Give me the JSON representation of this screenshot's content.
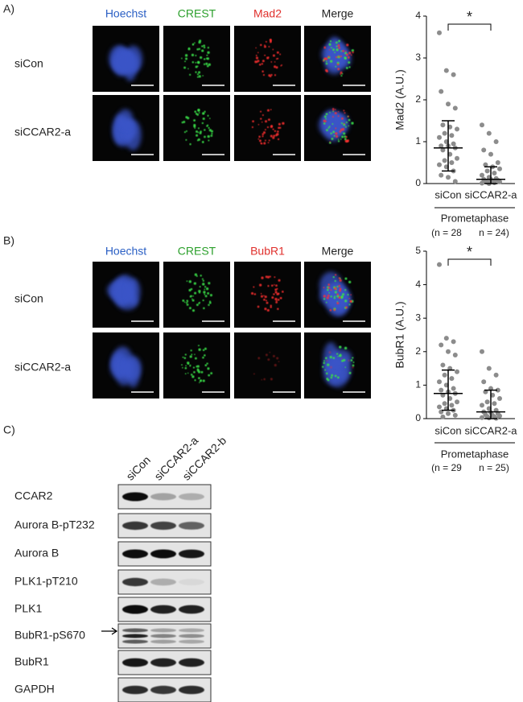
{
  "figure": {
    "panel_a": {
      "label": "A)",
      "columns": [
        "Hoechst",
        "CREST",
        "Mad2",
        "Merge"
      ],
      "rows": [
        "siCon",
        "siCCAR2-a"
      ]
    },
    "panel_b": {
      "label": "B)",
      "columns": [
        "Hoechst",
        "CREST",
        "BubR1",
        "Merge"
      ],
      "rows": [
        "siCon",
        "siCCAR2-a"
      ]
    },
    "panel_c": {
      "label": "C)",
      "lanes": [
        "siCon",
        "siCCAR2-a",
        "siCCAR2-b"
      ],
      "blots": [
        "CCAR2",
        "Aurora B-pT232",
        "Aurora B",
        "PLK1-pT210",
        "PLK1",
        "BubR1-pS670",
        "BubR1",
        "GAPDH"
      ]
    }
  },
  "chart_data": [
    {
      "type": "scatter",
      "y_label": "Mad2 (A.U.)",
      "categories": [
        "siCon",
        "siCCAR2-a"
      ],
      "color": "#8c8c8c",
      "ylim": [
        0,
        4
      ],
      "yticks": [
        0,
        1,
        2,
        3,
        4
      ],
      "significance": "*",
      "group_label": "Prometaphase",
      "n_labels": [
        "(n = 28",
        "n = 24)"
      ],
      "groups": [
        {
          "values": [
            3.6,
            2.7,
            2.6,
            2.2,
            1.9,
            1.8,
            1.4,
            1.35,
            1.3,
            1.2,
            1.15,
            1.1,
            1.0,
            0.95,
            0.9,
            0.9,
            0.85,
            0.8,
            0.7,
            0.6,
            0.55,
            0.5,
            0.45,
            0.4,
            0.3,
            0.2,
            0.15,
            0.05
          ],
          "median": 0.85,
          "range": [
            0.3,
            1.5
          ]
        },
        {
          "values": [
            1.4,
            1.2,
            1.0,
            0.8,
            0.7,
            0.5,
            0.45,
            0.4,
            0.35,
            0.3,
            0.25,
            0.2,
            0.15,
            0.12,
            0.1,
            0.1,
            0.08,
            0.06,
            0.05,
            0.04,
            0.03,
            0.02,
            0.01,
            0.0
          ],
          "median": 0.1,
          "range": [
            0.0,
            0.4
          ]
        }
      ]
    },
    {
      "type": "scatter",
      "y_label": "BubR1 (A.U.)",
      "categories": [
        "siCon",
        "siCCAR2-a"
      ],
      "color": "#8c8c8c",
      "ylim": [
        0,
        5
      ],
      "yticks": [
        0,
        1,
        2,
        3,
        4,
        5
      ],
      "significance": "*",
      "group_label": "Prometaphase",
      "n_labels": [
        "(n = 29",
        "n = 25)"
      ],
      "groups": [
        {
          "values": [
            4.6,
            2.4,
            2.3,
            2.2,
            2.0,
            1.9,
            1.6,
            1.5,
            1.4,
            1.3,
            1.2,
            1.1,
            1.0,
            0.9,
            0.85,
            0.8,
            0.75,
            0.7,
            0.6,
            0.5,
            0.45,
            0.4,
            0.35,
            0.3,
            0.25,
            0.2,
            0.15,
            0.1,
            0.05
          ],
          "median": 0.75,
          "range": [
            0.25,
            1.45
          ]
        },
        {
          "values": [
            2.0,
            1.5,
            1.3,
            1.1,
            0.9,
            0.85,
            0.8,
            0.7,
            0.6,
            0.5,
            0.45,
            0.4,
            0.3,
            0.25,
            0.2,
            0.18,
            0.15,
            0.12,
            0.1,
            0.08,
            0.06,
            0.05,
            0.03,
            0.02,
            0.01
          ],
          "median": 0.2,
          "range": [
            0.0,
            0.85
          ]
        }
      ]
    }
  ]
}
